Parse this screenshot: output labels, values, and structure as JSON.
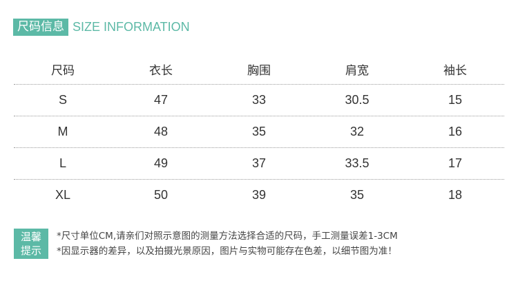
{
  "header": {
    "title_cn": "尺码信息",
    "title_en": "SIZE INFORMATION"
  },
  "table": {
    "columns": [
      "尺码",
      "衣长",
      "胸围",
      "肩宽",
      "袖长"
    ],
    "rows": [
      [
        "S",
        "47",
        "33",
        "30.5",
        "15"
      ],
      [
        "M",
        "48",
        "35",
        "32",
        "16"
      ],
      [
        "L",
        "49",
        "37",
        "33.5",
        "17"
      ],
      [
        "XL",
        "50",
        "39",
        "35",
        "18"
      ]
    ]
  },
  "tips": {
    "badge_line1": "温馨",
    "badge_line2": "提示",
    "lines": [
      "*尺寸单位CM,请亲们对照示意图的测量方法选择合适的尺码，手工测量误差1-3CM",
      "*因显示器的差异，以及拍摄光景原因，图片与实物可能存在色差，以细节图为准！"
    ]
  },
  "colors": {
    "accent": "#5cb9a6"
  }
}
